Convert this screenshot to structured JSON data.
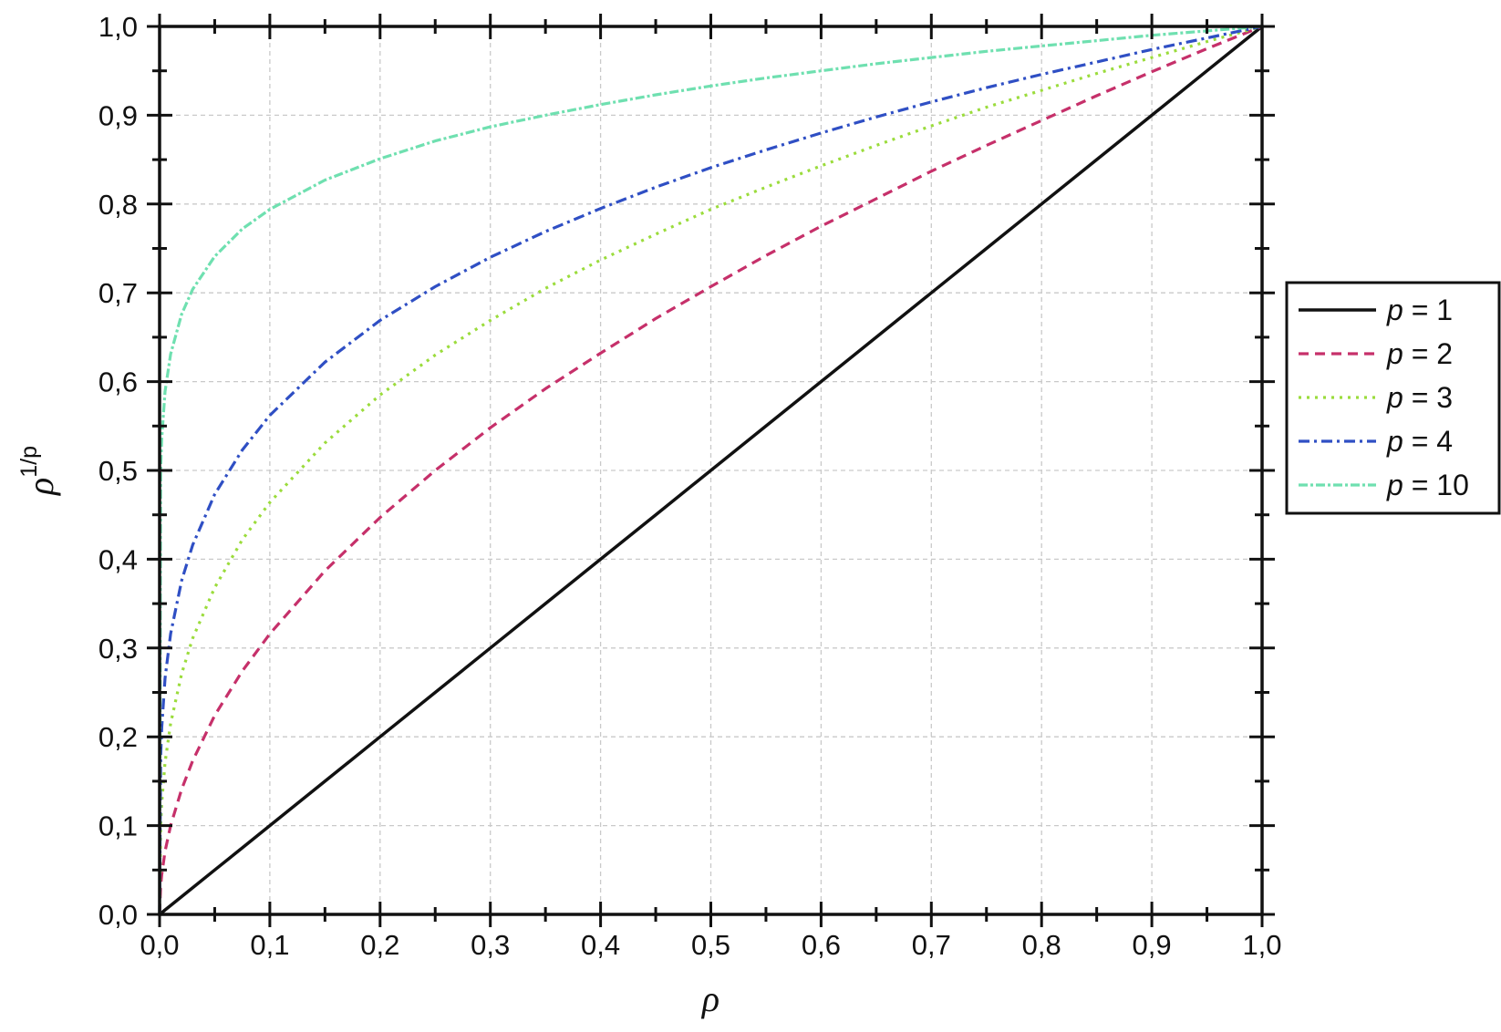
{
  "chart_data": {
    "type": "line",
    "title": "",
    "xlabel": "ρ",
    "ylabel": {
      "base": "ρ",
      "sup": "1/p"
    },
    "xlim": [
      0,
      1
    ],
    "ylim": [
      0,
      1
    ],
    "grid": true,
    "legend_position": "right",
    "x_ticks": [
      0,
      0.1,
      0.2,
      0.3,
      0.4,
      0.5,
      0.6,
      0.7,
      0.8,
      0.9,
      1
    ],
    "x_tick_labels": [
      "0,0",
      "0,1",
      "0,2",
      "0,3",
      "0,4",
      "0,5",
      "0,6",
      "0,7",
      "0,8",
      "0,9",
      "1,0"
    ],
    "y_ticks": [
      0,
      0.1,
      0.2,
      0.3,
      0.4,
      0.5,
      0.6,
      0.7,
      0.8,
      0.9,
      1
    ],
    "y_tick_labels": [
      "0,0",
      "0,1",
      "0,2",
      "0,3",
      "0,4",
      "0,5",
      "0,6",
      "0,7",
      "0,8",
      "0,9",
      "1,0"
    ],
    "x": [
      0,
      0.001,
      0.002,
      0.005,
      0.01,
      0.02,
      0.03,
      0.05,
      0.075,
      0.1,
      0.15,
      0.2,
      0.25,
      0.3,
      0.35,
      0.4,
      0.45,
      0.5,
      0.55,
      0.6,
      0.65,
      0.7,
      0.75,
      0.8,
      0.85,
      0.9,
      0.95,
      1.0
    ],
    "series": [
      {
        "name": "1",
        "legend_var": "p",
        "legend_eq": " = ",
        "color": "#111111",
        "dash": "none",
        "values": [
          0,
          0.001,
          0.002,
          0.005,
          0.01,
          0.02,
          0.03,
          0.05,
          0.075,
          0.1,
          0.15,
          0.2,
          0.25,
          0.3,
          0.35,
          0.4,
          0.45,
          0.5,
          0.55,
          0.6,
          0.65,
          0.7,
          0.75,
          0.8,
          0.85,
          0.9,
          0.95,
          1.0
        ]
      },
      {
        "name": "2",
        "legend_var": "p",
        "legend_eq": " = ",
        "color": "#c6306a",
        "dash": "11 7",
        "values": [
          0,
          0.032,
          0.045,
          0.071,
          0.1,
          0.141,
          0.173,
          0.224,
          0.274,
          0.316,
          0.387,
          0.447,
          0.5,
          0.548,
          0.592,
          0.632,
          0.671,
          0.707,
          0.742,
          0.775,
          0.806,
          0.837,
          0.866,
          0.894,
          0.922,
          0.949,
          0.975,
          1.0
        ]
      },
      {
        "name": "3",
        "legend_var": "p",
        "legend_eq": " = ",
        "color": "#9bdc3c",
        "dash": "3 6",
        "values": [
          0,
          0.1,
          0.126,
          0.171,
          0.215,
          0.271,
          0.311,
          0.368,
          0.422,
          0.464,
          0.531,
          0.585,
          0.63,
          0.669,
          0.705,
          0.737,
          0.766,
          0.794,
          0.819,
          0.843,
          0.866,
          0.888,
          0.909,
          0.928,
          0.947,
          0.965,
          0.983,
          1.0
        ]
      },
      {
        "name": "4",
        "legend_var": "p",
        "legend_eq": " = ",
        "color": "#2f4fc4",
        "dash": "12 5 3 5",
        "values": [
          0,
          0.178,
          0.211,
          0.266,
          0.316,
          0.376,
          0.416,
          0.473,
          0.523,
          0.562,
          0.622,
          0.669,
          0.707,
          0.74,
          0.769,
          0.795,
          0.819,
          0.841,
          0.861,
          0.88,
          0.898,
          0.915,
          0.931,
          0.946,
          0.96,
          0.974,
          0.987,
          1.0
        ]
      },
      {
        "name": "10",
        "legend_var": "p",
        "legend_eq": " = ",
        "color": "#6fe0b0",
        "dash": "10 3 3 3",
        "values": [
          0,
          0.501,
          0.537,
          0.589,
          0.631,
          0.676,
          0.704,
          0.741,
          0.772,
          0.794,
          0.827,
          0.851,
          0.871,
          0.887,
          0.9,
          0.912,
          0.923,
          0.933,
          0.942,
          0.95,
          0.958,
          0.965,
          0.972,
          0.978,
          0.984,
          0.99,
          0.995,
          1.0
        ]
      }
    ]
  }
}
